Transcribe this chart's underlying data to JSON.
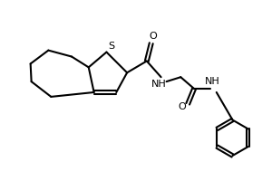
{
  "background_color": "#ffffff",
  "line_color": "#000000",
  "line_width": 1.5,
  "figsize": [
    3.0,
    2.0
  ],
  "dpi": 100,
  "S_label": "S",
  "O1_label": "O",
  "O2_label": "O",
  "NH1_label": "NH",
  "NH2_label": "NH"
}
